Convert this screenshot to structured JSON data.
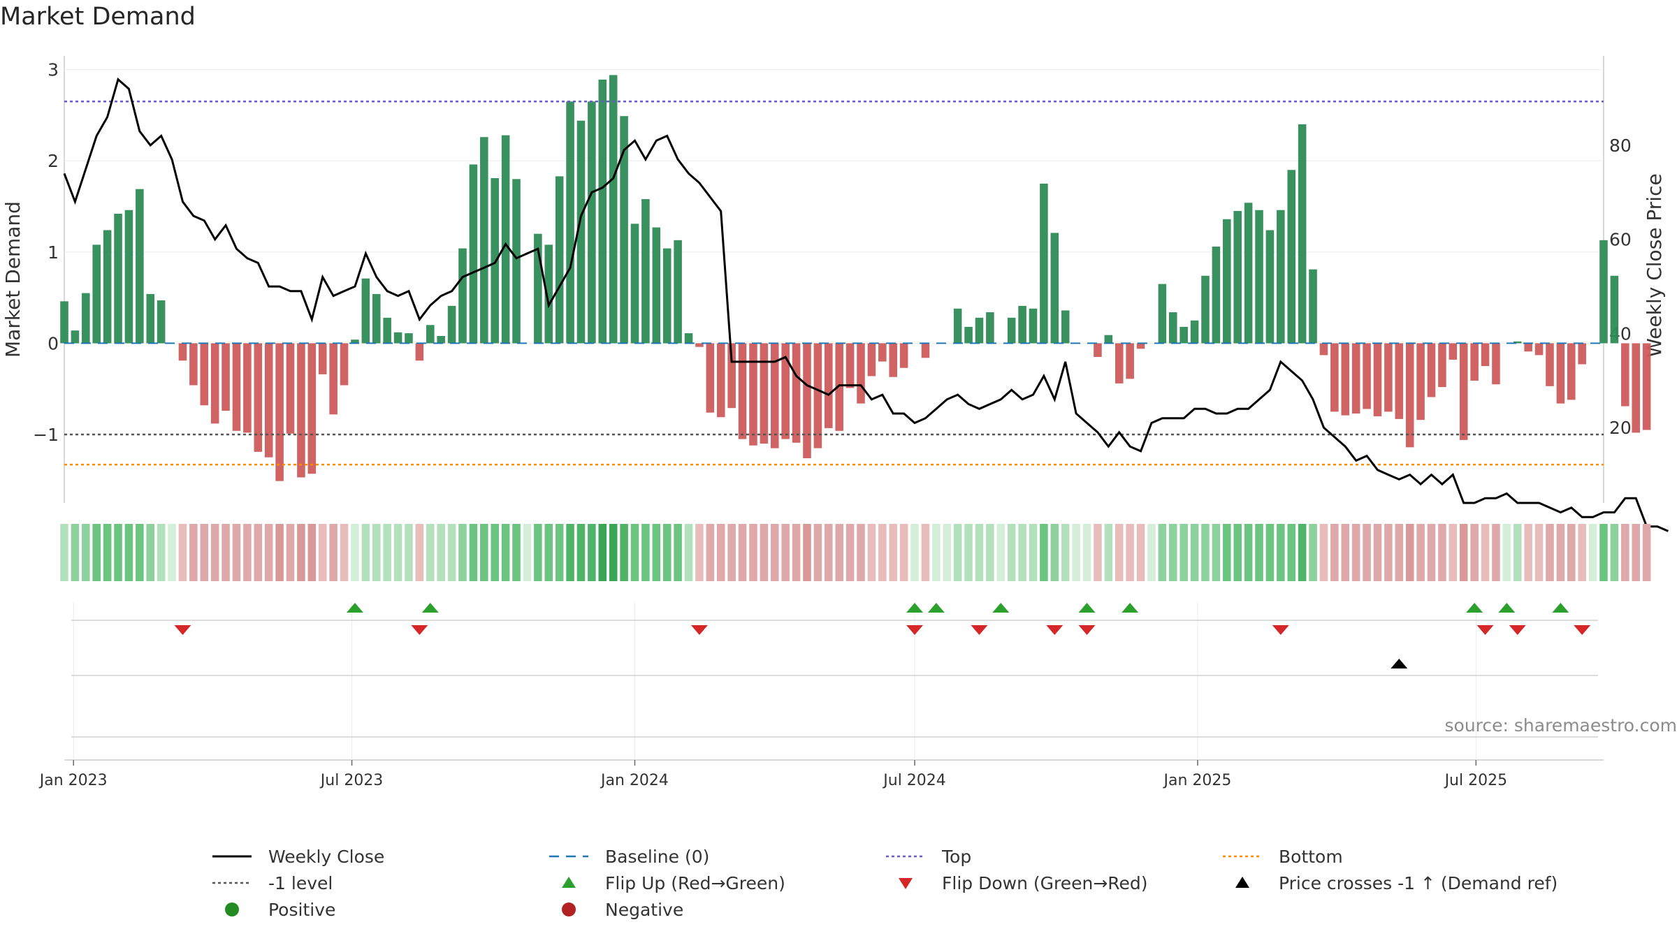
{
  "title": "Market Demand",
  "source": "source: sharemaestro.com",
  "colors": {
    "positive": "#2e8b57",
    "negative": "#cd5c5c",
    "price": "#000000",
    "baseline": "#1f77b4",
    "top": "#6a5acd",
    "bottom": "#ff8c00",
    "minus1": "#555555",
    "flip_up": "#2ca02c",
    "flip_down": "#d62728",
    "cross": "#000000"
  },
  "legend": [
    {
      "label": "Weekly Close",
      "symbol": "line-solid",
      "color": "#000000"
    },
    {
      "label": "Baseline (0)",
      "symbol": "line-dashed",
      "color": "#1f77b4"
    },
    {
      "label": "Top",
      "symbol": "line-dotted",
      "color": "#6a5acd"
    },
    {
      "label": "Bottom",
      "symbol": "line-dotted",
      "color": "#ff8c00"
    },
    {
      "label": "-1 level",
      "symbol": "line-dotted",
      "color": "#555555"
    },
    {
      "label": "Flip Up (Red→Green)",
      "symbol": "triangle-up",
      "color": "#2ca02c"
    },
    {
      "label": "Flip Down (Green→Red)",
      "symbol": "triangle-down",
      "color": "#d62728"
    },
    {
      "label": "Price crosses -1 ↑ (Demand ref)",
      "symbol": "triangle-up",
      "color": "#000000"
    },
    {
      "label": "Positive",
      "symbol": "circle",
      "color": "#228b22"
    },
    {
      "label": "Negative",
      "symbol": "circle",
      "color": "#b22222"
    }
  ],
  "chart_data": {
    "type": "bar",
    "xlim": [
      "2022-12-26",
      "2025-09-22"
    ],
    "ylabel": "Market Demand",
    "ylabel_right": "Weekly Close Price",
    "ylim": [
      -1.75,
      3.15
    ],
    "ylim_right": [
      4,
      99
    ],
    "yticks": [
      -1,
      0,
      1,
      2,
      3
    ],
    "yticks_right": [
      20,
      40,
      60,
      80
    ],
    "xticks": [
      {
        "date": "2023-01-01",
        "label": "Jan 2023"
      },
      {
        "date": "2023-07-01",
        "label": "Jul 2023"
      },
      {
        "date": "2024-01-01",
        "label": "Jan 2024"
      },
      {
        "date": "2024-07-01",
        "label": "Jul 2024"
      },
      {
        "date": "2025-01-01",
        "label": "Jan 2025"
      },
      {
        "date": "2025-07-01",
        "label": "Jul 2025"
      }
    ],
    "start_date": "2022-12-26",
    "weeks_per_step": 1,
    "reference_lines": {
      "baseline": 0,
      "top": 2.65,
      "bottom": -1.33,
      "minus1": -1
    },
    "demand": [
      0.46,
      0.14,
      0.55,
      1.08,
      1.24,
      1.42,
      1.46,
      1.69,
      0.54,
      0.47,
      0.0,
      -0.19,
      -0.46,
      -0.68,
      -0.88,
      -0.74,
      -0.96,
      -0.98,
      -1.19,
      -1.25,
      -1.51,
      -0.99,
      -1.47,
      -1.43,
      -0.34,
      -0.78,
      -0.46,
      0.04,
      0.71,
      0.54,
      0.28,
      0.12,
      0.11,
      -0.19,
      0.2,
      0.08,
      0.41,
      1.04,
      1.96,
      2.26,
      1.81,
      2.28,
      1.8,
      0.0,
      1.2,
      1.08,
      1.83,
      2.65,
      2.44,
      2.65,
      2.89,
      2.94,
      2.49,
      1.31,
      1.58,
      1.27,
      1.04,
      1.13,
      0.11,
      -0.04,
      -0.76,
      -0.81,
      -0.71,
      -1.05,
      -1.12,
      -1.1,
      -1.15,
      -1.05,
      -1.09,
      -1.26,
      -1.15,
      -0.93,
      -0.96,
      -0.49,
      -0.66,
      -0.36,
      -0.2,
      -0.37,
      -0.27,
      0.0,
      -0.16,
      0.0,
      0.0,
      0.38,
      0.18,
      0.28,
      0.34,
      0.0,
      0.28,
      0.41,
      0.38,
      1.75,
      1.21,
      0.36,
      0.0,
      0.0,
      -0.15,
      0.09,
      -0.44,
      -0.39,
      -0.06,
      0.0,
      0.65,
      0.34,
      0.18,
      0.25,
      0.74,
      1.06,
      1.36,
      1.45,
      1.54,
      1.46,
      1.24,
      1.46,
      1.9,
      2.4,
      0.81,
      -0.13,
      -0.75,
      -0.79,
      -0.77,
      -0.72,
      -0.8,
      -0.75,
      -0.83,
      -1.14,
      -0.84,
      -0.59,
      -0.48,
      -0.18,
      -1.06,
      -0.41,
      -0.25,
      -0.45,
      0.0,
      0.02,
      -0.09,
      -0.13,
      -0.47,
      -0.66,
      -0.62,
      -0.23,
      0.0,
      1.13,
      0.74,
      -0.69,
      -0.98,
      -0.95
    ],
    "close": [
      74,
      68,
      75,
      82,
      86,
      94,
      92,
      83,
      80,
      82,
      77,
      68,
      65,
      64,
      60,
      63,
      58,
      56,
      55,
      50,
      50,
      49,
      49,
      43,
      52,
      48,
      49,
      50,
      57,
      52,
      49,
      48,
      49,
      43,
      46,
      48,
      49,
      52,
      53,
      54,
      55,
      59,
      56,
      57,
      58,
      46,
      50,
      54,
      65,
      70,
      71,
      73,
      79,
      81,
      77,
      81,
      82,
      77,
      74,
      72,
      69,
      66,
      34,
      34,
      34,
      34,
      34,
      35,
      31,
      29,
      28,
      27,
      29,
      29,
      29,
      26,
      27,
      23,
      23,
      21,
      22,
      24,
      26,
      27,
      25,
      24,
      25,
      26,
      28,
      26,
      27,
      31,
      26,
      34,
      23,
      21,
      19,
      16,
      19,
      16,
      15,
      21,
      22,
      22,
      22,
      24,
      24,
      23,
      23,
      24,
      24,
      26,
      28,
      34,
      32,
      30,
      26,
      20,
      18,
      16,
      13,
      14,
      11,
      10,
      9,
      10,
      8,
      10,
      8,
      10,
      4,
      4,
      5,
      5,
      6,
      4,
      4,
      4,
      3,
      2,
      3,
      1,
      1,
      2,
      2,
      5,
      5,
      -1,
      -1,
      -2
    ],
    "shade": [
      1,
      2,
      2,
      3,
      3,
      3,
      3,
      3,
      2,
      1,
      0,
      -1,
      -2,
      -2,
      -2,
      -2,
      -2,
      -2,
      -2,
      -2,
      -3,
      -2,
      -3,
      -3,
      -1,
      -2,
      -1,
      0,
      1,
      1,
      1,
      1,
      1,
      -1,
      1,
      1,
      1,
      2,
      3,
      3,
      3,
      3,
      3,
      0,
      3,
      3,
      3,
      4,
      4,
      4,
      5,
      5,
      4,
      3,
      3,
      3,
      3,
      3,
      1,
      -1,
      -2,
      -2,
      -2,
      -2,
      -2,
      -2,
      -2,
      -2,
      -2,
      -3,
      -2,
      -2,
      -2,
      -2,
      -2,
      -1,
      -1,
      -1,
      -1,
      0,
      -1,
      0,
      0,
      1,
      1,
      1,
      1,
      0,
      1,
      1,
      1,
      3,
      2,
      1,
      0,
      0,
      -1,
      1,
      -1,
      -1,
      -1,
      0,
      2,
      2,
      2,
      2,
      2,
      2,
      3,
      3,
      3,
      3,
      3,
      3,
      3,
      4,
      2,
      -1,
      -2,
      -2,
      -2,
      -2,
      -2,
      -2,
      -2,
      -3,
      -2,
      -2,
      -2,
      -1,
      -3,
      -2,
      -1,
      -2,
      0,
      1,
      -1,
      -1,
      -2,
      -2,
      -2,
      -1,
      0,
      3,
      2,
      -2,
      -2,
      -2
    ],
    "flip_up_weeks": [
      27,
      34,
      79,
      81,
      87,
      95,
      99,
      131,
      134,
      139
    ],
    "flip_down_weeks": [
      11,
      33,
      59,
      79,
      85,
      92,
      95,
      113,
      132,
      135,
      141
    ],
    "price_cross_weeks": [
      124
    ]
  }
}
